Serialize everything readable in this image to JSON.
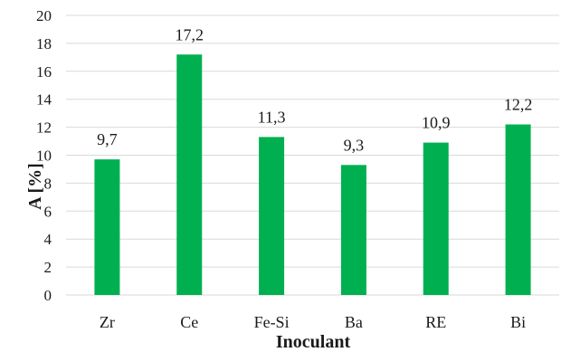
{
  "chart_data": {
    "type": "bar",
    "categories": [
      "Zr",
      "Ce",
      "Fe-Si",
      "Ba",
      "RE",
      "Bi"
    ],
    "values": [
      9.7,
      17.2,
      11.3,
      9.3,
      10.9,
      12.2
    ],
    "data_labels": [
      "9,7",
      "17,2",
      "11,3",
      "9,3",
      "10,9",
      "12,2"
    ],
    "xlabel": "Inoculant",
    "ylabel": "A  [%]",
    "ylim": [
      0,
      20
    ],
    "yticks": [
      0,
      2,
      4,
      6,
      8,
      10,
      12,
      14,
      16,
      18,
      20
    ],
    "grid": true,
    "legend": "none",
    "bar_color": "#00b050",
    "grid_color": "#d9d9d9"
  }
}
